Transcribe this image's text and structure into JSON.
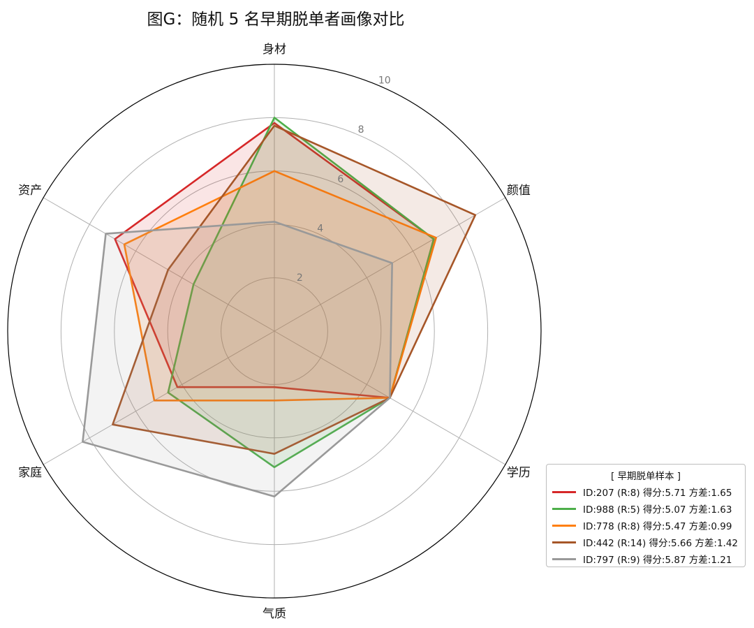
{
  "chart_data": {
    "type": "radar",
    "title": "图G：随机 5 名早期脱单者画像对比",
    "axes": [
      "身材",
      "颜值",
      "学历",
      "气质",
      "家庭",
      "资产"
    ],
    "rlim": [
      0,
      10
    ],
    "r_ticks": [
      2,
      4,
      6,
      8,
      10
    ],
    "r_tick_labels": [
      "2",
      "4",
      "6",
      "8",
      "10"
    ],
    "grid": true,
    "legend_title": "[ 早期脱单样本 ]",
    "legend_position": "bottom-right",
    "series": [
      {
        "name": "ID:207 (R:8) 得分:5.71 方差:1.65",
        "color": "#d62728",
        "values": [
          7.8,
          6.9,
          5.0,
          2.1,
          4.2,
          6.9
        ]
      },
      {
        "name": "ID:988 (R:5) 得分:5.07 方差:1.63",
        "color": "#4daf4a",
        "values": [
          8.0,
          6.9,
          5.0,
          5.1,
          4.6,
          3.5
        ]
      },
      {
        "name": "ID:778 (R:8) 得分:5.47 方差:0.99",
        "color": "#ff7f0e",
        "values": [
          6.0,
          7.0,
          5.0,
          2.6,
          5.2,
          6.5
        ]
      },
      {
        "name": "ID:442 (R:14) 得分:5.66 方差:1.42",
        "color": "#a65628",
        "values": [
          7.7,
          8.7,
          5.0,
          4.6,
          7.0,
          4.6
        ]
      },
      {
        "name": "ID:797 (R:9) 得分:5.87 方差:1.21",
        "color": "#999999",
        "values": [
          4.1,
          5.1,
          5.0,
          6.2,
          8.3,
          7.3
        ]
      }
    ]
  }
}
